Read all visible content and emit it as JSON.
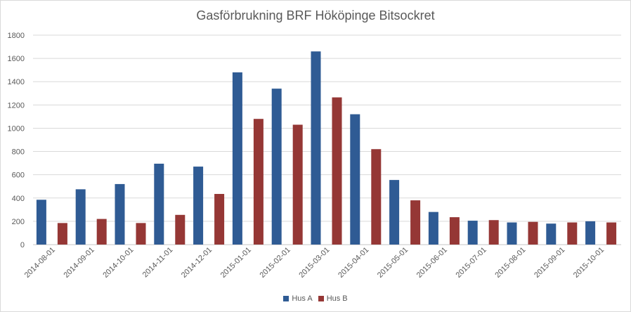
{
  "chart_data": {
    "type": "bar",
    "title": "Gasförbrukning BRF Hököpinge Bitsockret",
    "xlabel": "",
    "ylabel": "",
    "ylim": [
      0,
      1800
    ],
    "yticks": [
      0,
      200,
      400,
      600,
      800,
      1000,
      1200,
      1400,
      1600,
      1800
    ],
    "grid": true,
    "legend_position": "bottom",
    "categories": [
      "2014-08-01",
      "2014-09-01",
      "2014-10-01",
      "2014-11-01",
      "2014-12-01",
      "2015-01-01",
      "2015-02-01",
      "2015-03-01",
      "2015-04-01",
      "2015-05-01",
      "2015-06-01",
      "2015-07-01",
      "2015-08-01",
      "2015-09-01",
      "2015-10-01"
    ],
    "series": [
      {
        "name": "Hus A",
        "color": "#2f5b94",
        "values": [
          385,
          475,
          520,
          695,
          670,
          1480,
          1340,
          1660,
          1120,
          555,
          280,
          205,
          190,
          180,
          200
        ]
      },
      {
        "name": "Hus B",
        "color": "#953735",
        "values": [
          185,
          220,
          185,
          255,
          435,
          1080,
          1030,
          1265,
          820,
          380,
          235,
          210,
          195,
          190,
          190
        ]
      }
    ]
  }
}
